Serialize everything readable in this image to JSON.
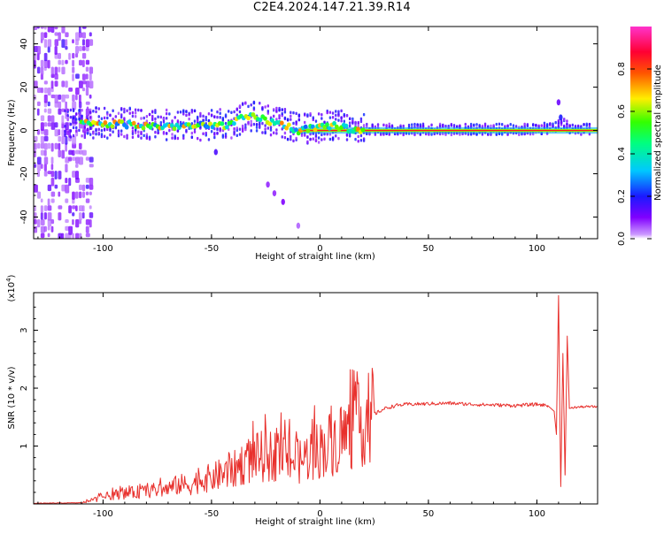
{
  "title": "C2E4.2024.147.21.39.R14",
  "chart_data": [
    {
      "type": "heatmap",
      "xlabel": "Height of straight line (km)",
      "ylabel": "Frequency (Hz)",
      "xlim": [
        -132,
        128
      ],
      "ylim": [
        -50,
        48
      ],
      "x_ticks": [
        -100,
        -50,
        0,
        50,
        100
      ],
      "y_ticks": [
        40,
        20,
        0,
        -20,
        -40
      ],
      "colorbar": {
        "label": "Normalized spectral amplitude",
        "range": [
          0.0,
          1.0
        ],
        "ticks": [
          "0.0",
          "0.2",
          "0.4",
          "0.6",
          "0.8"
        ],
        "tick_values": [
          0.0,
          0.2,
          0.4,
          0.6,
          0.8
        ],
        "colormap": "rainbow (violet→blue→cyan→green→yellow→red→magenta)"
      },
      "ridge": {
        "description": "dominant spectral ridge near 0 Hz",
        "x": [
          -105,
          -90,
          -80,
          -70,
          -60,
          -50,
          -40,
          -35,
          -30,
          -25,
          -20,
          -15,
          -10,
          0,
          5,
          10,
          15,
          20,
          40,
          60,
          80,
          100,
          108,
          112,
          115,
          128
        ],
        "y": [
          3,
          3,
          2,
          2,
          2,
          2,
          3,
          6,
          6,
          5,
          3,
          2,
          0,
          1,
          2,
          2,
          0,
          0,
          0,
          0,
          0,
          0,
          1,
          3,
          0,
          0
        ]
      },
      "grid": false
    },
    {
      "type": "line",
      "xlabel": "Height of straight line (km)",
      "ylabel": "SNR (10 * v/v)",
      "y_scale_label": "(x10",
      "y_scale_exp": "4",
      "xlim": [
        -132,
        128
      ],
      "ylim": [
        0,
        3.65
      ],
      "x_ticks": [
        -100,
        -50,
        0,
        50,
        100
      ],
      "y_ticks": [
        1,
        2,
        3
      ],
      "series": [
        {
          "color": "#e8302c",
          "x": [
            -132,
            -110,
            -105,
            -100,
            -95,
            -90,
            -85,
            -80,
            -75,
            -70,
            -65,
            -60,
            -55,
            -50,
            -45,
            -40,
            -35,
            -30,
            -25,
            -20,
            -15,
            -10,
            -5,
            0,
            5,
            10,
            15,
            20,
            25,
            30,
            35,
            40,
            50,
            60,
            70,
            80,
            90,
            95,
            100,
            105,
            108,
            109,
            110,
            111,
            112,
            113,
            114,
            115,
            118,
            122,
            128
          ],
          "y": [
            0.01,
            0.02,
            0.06,
            0.12,
            0.16,
            0.18,
            0.2,
            0.22,
            0.24,
            0.26,
            0.34,
            0.32,
            0.42,
            0.45,
            0.52,
            0.58,
            0.72,
            0.8,
            0.82,
            0.85,
            0.82,
            0.72,
            0.85,
            0.95,
            1.05,
            1.15,
            1.28,
            1.42,
            1.55,
            1.65,
            1.7,
            1.72,
            1.73,
            1.74,
            1.72,
            1.71,
            1.7,
            1.71,
            1.72,
            1.7,
            1.6,
            1.2,
            3.6,
            0.3,
            2.6,
            0.5,
            2.9,
            1.65,
            1.67,
            1.68,
            1.68
          ]
        }
      ],
      "grid": false
    }
  ]
}
